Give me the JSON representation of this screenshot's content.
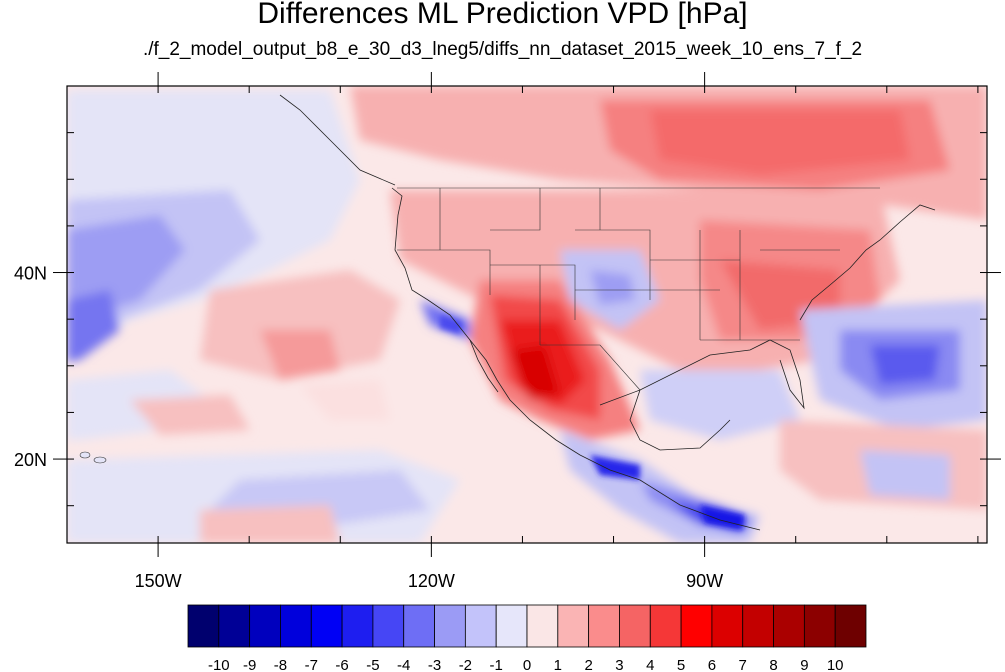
{
  "title": "Differences ML Prediction VPD [hPa]",
  "subtitle": "./f_2_model_output_b8_e_30_d3_lneg5/diffs_nn_dataset_2015_week_10_ens_7_f_2",
  "map": {
    "lon_range": [
      -160,
      -59
    ],
    "lat_range": [
      11,
      60
    ],
    "lon_ticks": [
      {
        "value": -150,
        "label": "150W"
      },
      {
        "value": -120,
        "label": "120W"
      },
      {
        "value": -90,
        "label": "90W"
      }
    ],
    "lat_ticks": [
      {
        "value": 40,
        "label": "40N"
      },
      {
        "value": 20,
        "label": "20N"
      }
    ],
    "minor_lon_ticks": [
      -160,
      -150,
      -140,
      -130,
      -120,
      -110,
      -100,
      -90,
      -80,
      -70,
      -60
    ],
    "minor_lat_ticks": [
      15,
      20,
      25,
      30,
      35,
      40,
      45,
      50,
      55
    ]
  },
  "colorbar": {
    "labels": [
      "-10",
      "-9",
      "-8",
      "-7",
      "-6",
      "-5",
      "-4",
      "-3",
      "-2",
      "-1",
      "0",
      "1",
      "2",
      "3",
      "4",
      "5",
      "6",
      "7",
      "8",
      "9",
      "10"
    ],
    "colors": [
      "#00006e",
      "#000096",
      "#0000be",
      "#0000dc",
      "#0000f5",
      "#1e1ef0",
      "#4646f5",
      "#6e6ef5",
      "#9b9bf5",
      "#c3c3fa",
      "#e6e6fa",
      "#fae6e6",
      "#fab4b4",
      "#fa8c8c",
      "#f56464",
      "#f53737",
      "#ff0000",
      "#dc0000",
      "#c30000",
      "#aa0000",
      "#8c0000",
      "#6e0000"
    ]
  }
}
